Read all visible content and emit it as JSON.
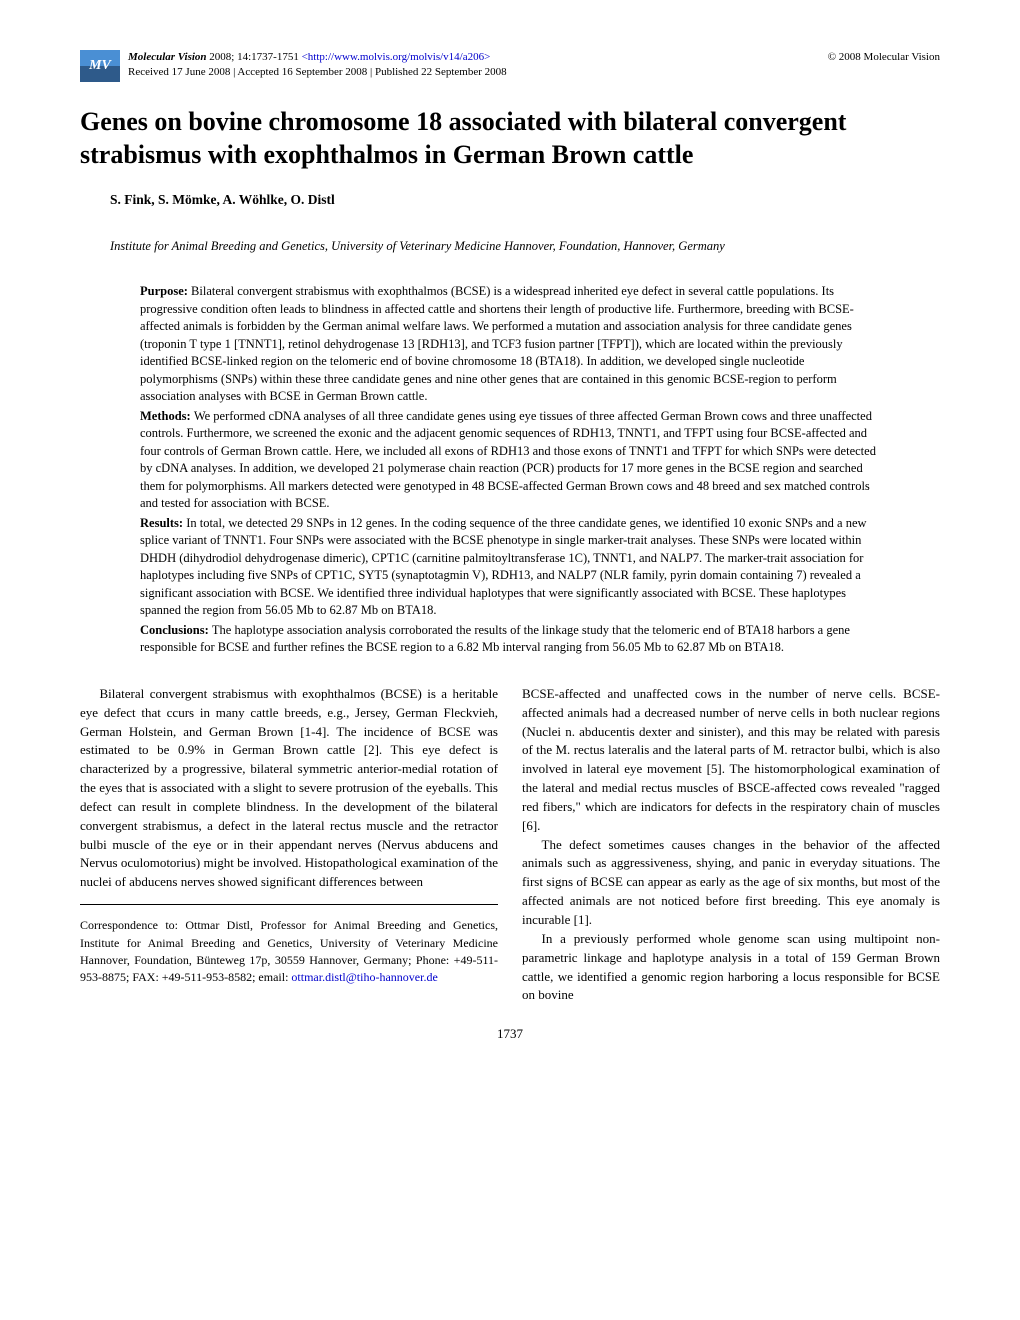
{
  "header": {
    "logo_text": "MV",
    "journal": "Molecular Vision",
    "citation": " 2008; 14:1737-1751 ",
    "url": "<http://www.molvis.org/molvis/v14/a206>",
    "received": "Received 17 June 2008 | Accepted 16 September 2008 | Published 22 September 2008",
    "copyright": "© 2008 Molecular Vision"
  },
  "title": "Genes on bovine chromosome 18 associated with bilateral convergent strabismus with exophthalmos in German Brown cattle",
  "authors": "S. Fink, S. Mömke, A. Wöhlke, O. Distl",
  "affiliation": "Institute for Animal Breeding and Genetics, University of Veterinary Medicine Hannover, Foundation, Hannover, Germany",
  "abstract": {
    "purpose_label": "Purpose: ",
    "purpose_text": "Bilateral convergent strabismus with exophthalmos (BCSE) is a widespread inherited eye defect in several cattle populations. Its progressive condition often leads to blindness in affected cattle and shortens their length of productive life. Furthermore, breeding with BCSE-affected animals is forbidden by the German animal welfare laws. We performed a mutation and association analysis for three candidate genes (troponin T type 1 [TNNT1], retinol dehydrogenase 13 [RDH13], and TCF3 fusion partner [TFPT]), which are located within the previously identified BCSE-linked region on the telomeric end of bovine chromosome 18 (BTA18). In addition, we developed single nucleotide polymorphisms (SNPs) within these three candidate genes and nine other genes that are contained in this genomic BCSE-region to perform association analyses with BCSE in German Brown cattle.",
    "methods_label": "Methods: ",
    "methods_text": "We performed cDNA analyses of all three candidate genes using eye tissues of three affected German Brown cows and three unaffected controls. Furthermore, we screened the exonic and the adjacent genomic sequences of RDH13, TNNT1, and TFPT using four BCSE-affected and four controls of German Brown cattle. Here, we included all exons of RDH13 and those exons of TNNT1 and TFPT for which SNPs were detected by cDNA analyses. In addition, we developed 21 polymerase chain reaction (PCR) products for 17 more genes in the BCSE region and searched them for polymorphisms. All markers detected were genotyped in 48 BCSE-affected German Brown cows and 48 breed and sex matched controls and tested for association with BCSE.",
    "results_label": "Results: ",
    "results_text": "In total, we detected 29 SNPs in 12 genes. In the coding sequence of the three candidate genes, we identified 10 exonic SNPs and a new splice variant of TNNT1. Four SNPs were associated with the BCSE phenotype in single marker-trait analyses. These SNPs were located within DHDH (dihydrodiol dehydrogenase dimeric), CPT1C (carnitine palmitoyltransferase 1C), TNNT1, and NALP7. The marker-trait association for haplotypes including five SNPs of CPT1C, SYT5 (synaptotagmin V), RDH13, and NALP7 (NLR family, pyrin domain containing 7) revealed a significant association with BCSE. We identified three individual haplotypes that were significantly associated with BCSE. These haplotypes spanned the region from 56.05 Mb to 62.87 Mb on BTA18.",
    "conclusions_label": "Conclusions: ",
    "conclusions_text": "The haplotype association analysis corroborated the results of the linkage study that the telomeric end of BTA18 harbors a gene responsible for BCSE and further refines the BCSE region to a 6.82 Mb interval ranging from 56.05 Mb to 62.87 Mb on BTA18."
  },
  "body": {
    "left_p1": "Bilateral convergent strabismus with exophthalmos (BCSE) is a heritable eye defect that ccurs in many cattle breeds, e.g., Jersey, German Fleckvieh, German Holstein, and German Brown [1-4]. The incidence of BCSE was estimated to be 0.9% in German Brown cattle [2]. This eye defect is characterized by a progressive, bilateral symmetric anterior-medial rotation of the eyes that is associated with a slight to severe protrusion of the eyeballs. This defect can result in complete blindness. In the development of the bilateral convergent strabismus, a defect in the lateral rectus muscle and the retractor bulbi muscle of the eye or in their appendant nerves (Nervus abducens and Nervus oculomotorius) might be involved. Histopathological examination of the nuclei of abducens nerves showed significant differences between",
    "correspondence": "Correspondence to: Ottmar Distl, Professor for Animal Breeding and Genetics, Institute for Animal Breeding and Genetics, University of Veterinary Medicine Hannover, Foundation, Bünteweg 17p, 30559 Hannover, Germany; Phone: +49-511-953-8875; FAX: +49-511-953-8582; email: ",
    "correspondence_email": "ottmar.distl@tiho-hannover.de",
    "right_p1": "BCSE-affected and unaffected cows in the number of nerve cells. BCSE-affected animals had a decreased number of nerve cells in both nuclear regions (Nuclei n. abducentis dexter and sinister), and this may be related with paresis of the M. rectus lateralis and the lateral parts of M. retractor bulbi, which is also involved in lateral eye movement [5]. The histomorphological examination of the lateral and medial rectus muscles of BSCE-affected cows revealed \"ragged red fibers,\" which are indicators for defects in the respiratory chain of muscles [6].",
    "right_p2": "The defect sometimes causes changes in the behavior of the affected animals such as aggressiveness, shying, and panic in everyday situations. The first signs of BCSE can appear as early as the age of six months, but most of the affected animals are not noticed before first breeding. This eye anomaly is incurable [1].",
    "right_p3": "In a previously performed whole genome scan using multipoint non-parametric linkage and haplotype analysis in a total of 159 German Brown cattle, we identified a genomic region harboring a locus responsible for BCSE on bovine"
  },
  "page_number": "1737"
}
